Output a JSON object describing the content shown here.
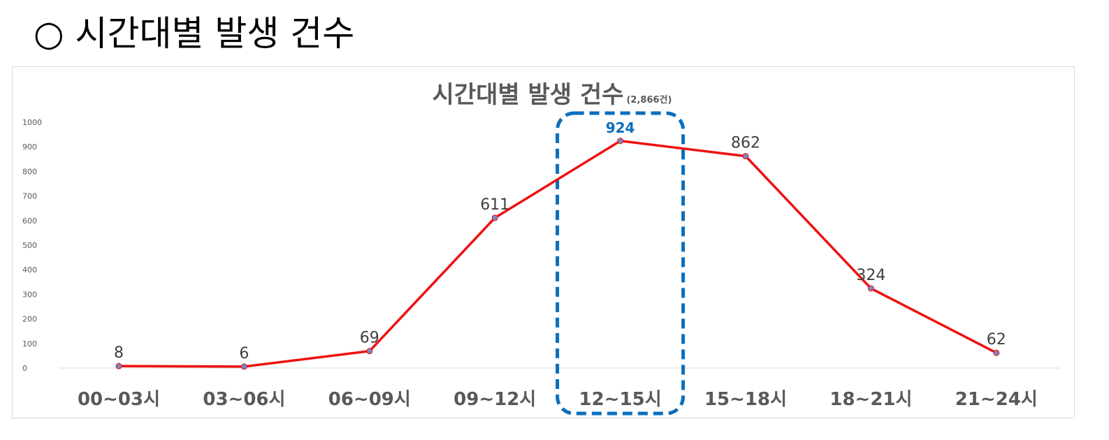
{
  "heading": "○ 시간대별 발생 건수",
  "chart_data": {
    "type": "line",
    "title": "시간대별 발생 건수",
    "subtitle": "(2,866건)",
    "categories": [
      "00~03시",
      "03~06시",
      "06~09시",
      "09~12시",
      "12~15시",
      "15~18시",
      "18~21시",
      "21~24시"
    ],
    "series": [
      {
        "values": [
          8,
          6,
          69,
          611,
          924,
          862,
          324,
          62
        ],
        "color": "#ee1111"
      }
    ],
    "ylim": [
      0,
      1000
    ],
    "yticks": [
      0,
      100,
      200,
      300,
      400,
      500,
      600,
      700,
      800,
      900,
      1000
    ],
    "grid": false,
    "legend": "none",
    "highlight": {
      "category": "12~15시",
      "color": "#0a6ebd",
      "style": "dashed rounded box"
    },
    "marker_color": "#7a86c8"
  }
}
